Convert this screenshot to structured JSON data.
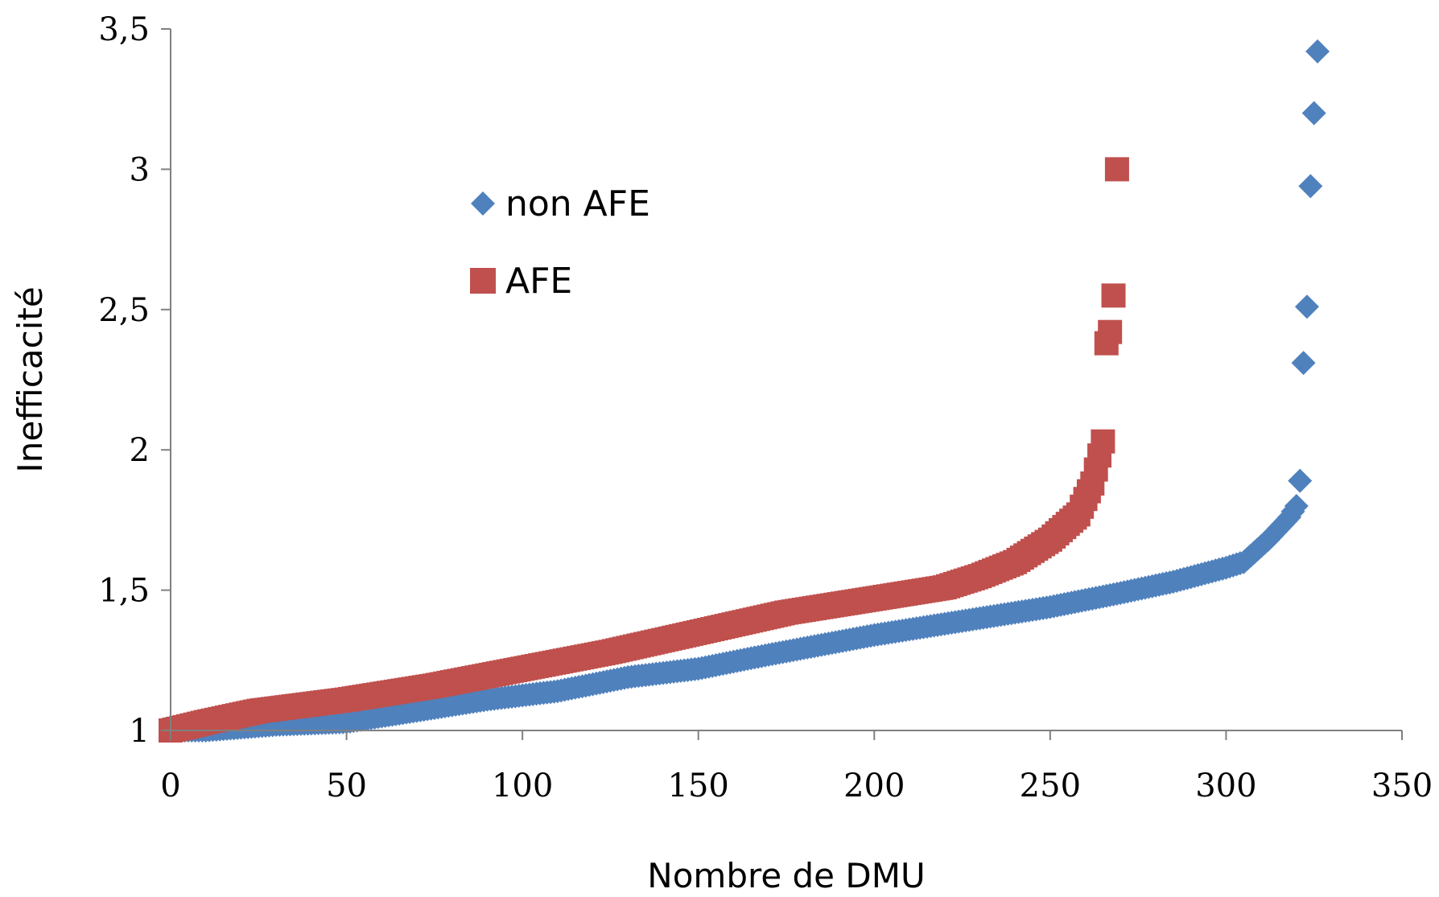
{
  "chart_data": {
    "type": "scatter",
    "title": "",
    "xlabel": "Nombre de DMU",
    "ylabel": "Inefficacité",
    "xlim": [
      0,
      350
    ],
    "ylim": [
      1,
      3.5
    ],
    "x_ticks": [
      0,
      50,
      100,
      150,
      200,
      250,
      300,
      350
    ],
    "y_ticks": [
      1,
      1.5,
      2,
      2.5,
      3,
      3.5
    ],
    "x_tick_labels": [
      "0",
      "50",
      "100",
      "150",
      "200",
      "250",
      "300",
      "350"
    ],
    "y_tick_labels": [
      "1",
      "1,5",
      "2",
      "2,5",
      "3",
      "3,5"
    ],
    "legend_position": "upper-left-inside",
    "series": [
      {
        "name": "non AFE",
        "marker": "diamond",
        "color": "#4F81BD",
        "anchors": [
          [
            0,
            1.0
          ],
          [
            10,
            1.0
          ],
          [
            30,
            1.02
          ],
          [
            50,
            1.03
          ],
          [
            70,
            1.07
          ],
          [
            90,
            1.11
          ],
          [
            110,
            1.14
          ],
          [
            130,
            1.19
          ],
          [
            150,
            1.22
          ],
          [
            170,
            1.27
          ],
          [
            200,
            1.34
          ],
          [
            230,
            1.4
          ],
          [
            250,
            1.44
          ],
          [
            270,
            1.49
          ],
          [
            285,
            1.53
          ],
          [
            300,
            1.58
          ],
          [
            305,
            1.6
          ],
          [
            312,
            1.68
          ],
          [
            318,
            1.76
          ],
          [
            320,
            1.8
          ],
          [
            321,
            1.89
          ],
          [
            322,
            2.31
          ],
          [
            323,
            2.51
          ],
          [
            324,
            2.94
          ],
          [
            325,
            3.2
          ],
          [
            326,
            3.42
          ]
        ]
      },
      {
        "name": "AFE",
        "marker": "square",
        "color": "#C0504D",
        "anchors": [
          [
            0,
            1.0
          ],
          [
            10,
            1.03
          ],
          [
            25,
            1.07
          ],
          [
            50,
            1.11
          ],
          [
            75,
            1.16
          ],
          [
            100,
            1.22
          ],
          [
            125,
            1.28
          ],
          [
            150,
            1.35
          ],
          [
            175,
            1.42
          ],
          [
            200,
            1.47
          ],
          [
            220,
            1.51
          ],
          [
            230,
            1.55
          ],
          [
            240,
            1.6
          ],
          [
            250,
            1.68
          ],
          [
            258,
            1.77
          ],
          [
            262,
            1.88
          ],
          [
            265,
            2.03
          ],
          [
            266,
            2.38
          ],
          [
            267,
            2.42
          ],
          [
            268,
            2.55
          ],
          [
            269,
            3.0
          ]
        ]
      }
    ]
  }
}
